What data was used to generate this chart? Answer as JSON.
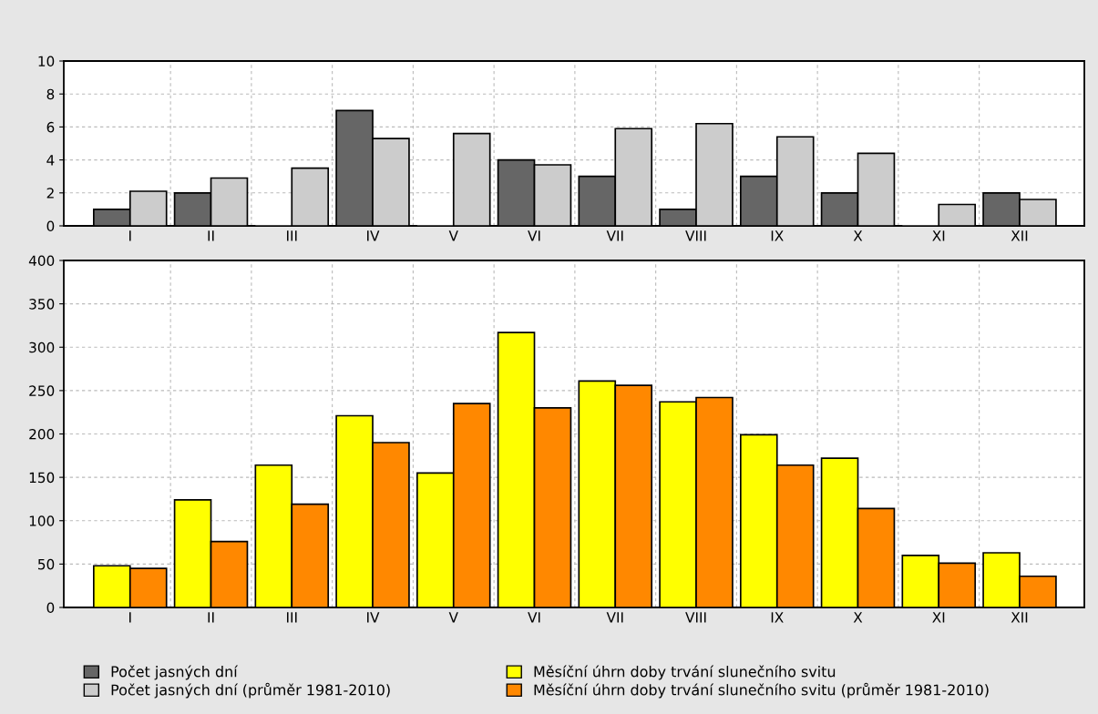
{
  "chart_data": [
    {
      "type": "bar",
      "categories": [
        "I",
        "II",
        "III",
        "IV",
        "V",
        "VI",
        "VII",
        "VIII",
        "IX",
        "X",
        "XI",
        "XII"
      ],
      "series": [
        {
          "name": "Počet jasných dní",
          "color": "#666666",
          "values": [
            1,
            2,
            0,
            7,
            0,
            4,
            3,
            1,
            3,
            2,
            0,
            2
          ]
        },
        {
          "name": "Počet jasných dní (průměr 1981-2010)",
          "color": "#cccccc",
          "values": [
            2.1,
            2.9,
            3.5,
            5.3,
            5.6,
            3.7,
            5.9,
            6.2,
            5.4,
            4.4,
            1.3,
            1.6
          ]
        }
      ],
      "ylim": [
        0,
        10
      ],
      "yticks": [
        0,
        2,
        4,
        6,
        8,
        10
      ],
      "grid": true,
      "legend": "bottom left"
    },
    {
      "type": "bar",
      "categories": [
        "I",
        "II",
        "III",
        "IV",
        "V",
        "VI",
        "VII",
        "VIII",
        "IX",
        "X",
        "XI",
        "XII"
      ],
      "series": [
        {
          "name": "Měsíční úhrn doby trvání slunečního svitu",
          "color": "#ffff00",
          "values": [
            48,
            124,
            164,
            221,
            155,
            317,
            261,
            237,
            199,
            172,
            60,
            63
          ]
        },
        {
          "name": "Měsíční úhrn doby trvání slunečního svitu (průměr 1981-2010)",
          "color": "#ff8800",
          "values": [
            45,
            76,
            119,
            190,
            235,
            230,
            256,
            242,
            164,
            114,
            51,
            36
          ]
        }
      ],
      "ylim": [
        0,
        400
      ],
      "yticks": [
        0,
        50,
        100,
        150,
        200,
        250,
        300,
        350,
        400
      ],
      "grid": true,
      "legend": "bottom right"
    }
  ]
}
